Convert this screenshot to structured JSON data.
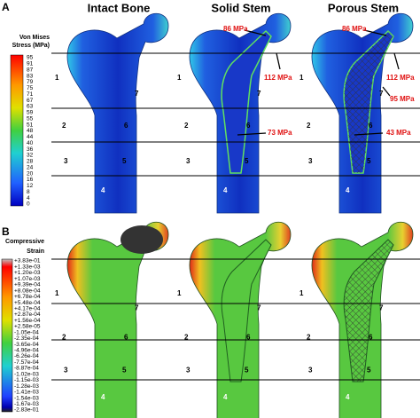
{
  "panels": [
    {
      "label": "A",
      "titles": [
        "Intact Bone",
        "Solid Stem",
        "Porous Stem"
      ],
      "colorbar": {
        "title": [
          "Von Mises",
          "Stress (MPa)"
        ],
        "labels": [
          "95",
          "91",
          "87",
          "83",
          "79",
          "75",
          "71",
          "67",
          "63",
          "59",
          "55",
          "51",
          "48",
          "44",
          "40",
          "36",
          "32",
          "28",
          "24",
          "20",
          "16",
          "12",
          "8",
          "4",
          "0"
        ]
      },
      "zones": [
        "1",
        "2",
        "3",
        "4",
        "5",
        "6",
        "7"
      ],
      "annotations": [
        "86 MPa",
        "112 MPa",
        "73 MPa",
        "86 MPa",
        "112 MPa",
        "95 MPa",
        "43 MPa"
      ]
    },
    {
      "label": "B",
      "colorbar": {
        "title": [
          "Compressive",
          "Strain"
        ],
        "labels": [
          "+3.83e-01",
          "+1.33e-03",
          "+1.20e-03",
          "+1.07e-03",
          "+9.39e-04",
          "+8.08e-04",
          "+6.78e-04",
          "+5.48e-04",
          "+4.17e-04",
          "+2.87e-04",
          "+1.56e-04",
          "+2.58e-05",
          "-1.05e-04",
          "-2.35e-04",
          "-3.65e-04",
          "-4.96e-04",
          "-6.26e-04",
          "-7.57e-04",
          "-8.87e-04",
          "-1.02e-03",
          "-1.15e-03",
          "-1.28e-03",
          "-1.41e-03",
          "-1.54e-03",
          "-1.67e-03",
          "-2.83e-01"
        ]
      },
      "zones": [
        "1",
        "2",
        "3",
        "4",
        "5",
        "6",
        "7"
      ]
    }
  ]
}
